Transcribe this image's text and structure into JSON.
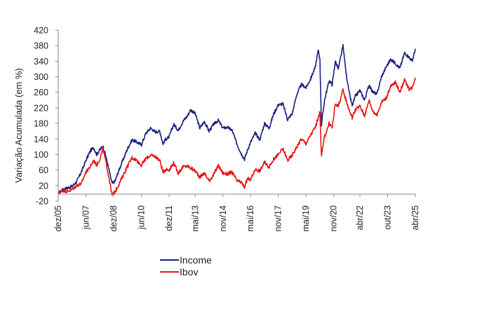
{
  "chart_data": {
    "type": "line",
    "title": "",
    "xlabel": "",
    "ylabel": "Variação Acumulada (em %)",
    "ylim": [
      -20,
      420
    ],
    "yticks": [
      -20,
      20,
      60,
      100,
      140,
      180,
      220,
      260,
      300,
      340,
      380,
      420
    ],
    "grid": false,
    "legend_position": "bottom-left",
    "x_range": [
      "2005-12",
      "2025-04"
    ],
    "x_tick_labels": [
      "dez/05",
      "jun/07",
      "dez/08",
      "jun/10",
      "dez/11",
      "mai/13",
      "nov/14",
      "mai/16",
      "nov/17",
      "mai/19",
      "nov/20",
      "abr/22",
      "out/23",
      "abr/25"
    ],
    "x_tick_dates": [
      "2005-12",
      "2007-06",
      "2008-12",
      "2010-06",
      "2011-12",
      "2013-05",
      "2014-11",
      "2016-05",
      "2017-11",
      "2019-05",
      "2020-11",
      "2022-04",
      "2023-10",
      "2025-04"
    ],
    "series": [
      {
        "name": "Income",
        "color": "#1a1f80",
        "points": [
          [
            "2005-12",
            0
          ],
          [
            "2006-03",
            10
          ],
          [
            "2006-06",
            14
          ],
          [
            "2006-09",
            18
          ],
          [
            "2006-12",
            30
          ],
          [
            "2007-03",
            55
          ],
          [
            "2007-06",
            85
          ],
          [
            "2007-09",
            110
          ],
          [
            "2007-11",
            118
          ],
          [
            "2008-01",
            100
          ],
          [
            "2008-03",
            112
          ],
          [
            "2008-05",
            122
          ],
          [
            "2008-07",
            95
          ],
          [
            "2008-09",
            60
          ],
          [
            "2008-11",
            25
          ],
          [
            "2009-01",
            32
          ],
          [
            "2009-03",
            55
          ],
          [
            "2009-06",
            85
          ],
          [
            "2009-09",
            115
          ],
          [
            "2009-12",
            138
          ],
          [
            "2010-03",
            132
          ],
          [
            "2010-06",
            125
          ],
          [
            "2010-09",
            155
          ],
          [
            "2010-12",
            168
          ],
          [
            "2011-03",
            158
          ],
          [
            "2011-06",
            160
          ],
          [
            "2011-08",
            128
          ],
          [
            "2011-10",
            140
          ],
          [
            "2011-12",
            145
          ],
          [
            "2012-03",
            178
          ],
          [
            "2012-06",
            162
          ],
          [
            "2012-09",
            185
          ],
          [
            "2012-12",
            200
          ],
          [
            "2013-02",
            215
          ],
          [
            "2013-05",
            205
          ],
          [
            "2013-08",
            168
          ],
          [
            "2013-11",
            185
          ],
          [
            "2014-02",
            160
          ],
          [
            "2014-05",
            178
          ],
          [
            "2014-08",
            188
          ],
          [
            "2014-11",
            168
          ],
          [
            "2015-02",
            170
          ],
          [
            "2015-05",
            162
          ],
          [
            "2015-08",
            128
          ],
          [
            "2015-11",
            102
          ],
          [
            "2016-01",
            88
          ],
          [
            "2016-03",
            112
          ],
          [
            "2016-05",
            132
          ],
          [
            "2016-08",
            155
          ],
          [
            "2016-11",
            138
          ],
          [
            "2017-02",
            180
          ],
          [
            "2017-05",
            168
          ],
          [
            "2017-08",
            205
          ],
          [
            "2017-11",
            228
          ],
          [
            "2018-02",
            230
          ],
          [
            "2018-05",
            190
          ],
          [
            "2018-08",
            205
          ],
          [
            "2018-11",
            255
          ],
          [
            "2019-02",
            280
          ],
          [
            "2019-05",
            272
          ],
          [
            "2019-08",
            295
          ],
          [
            "2019-11",
            325
          ],
          [
            "2020-01",
            370
          ],
          [
            "2020-02",
            345
          ],
          [
            "2020-03",
            175
          ],
          [
            "2020-05",
            240
          ],
          [
            "2020-08",
            290
          ],
          [
            "2020-10",
            280
          ],
          [
            "2020-12",
            340
          ],
          [
            "2021-02",
            320
          ],
          [
            "2021-05",
            380
          ],
          [
            "2021-07",
            310
          ],
          [
            "2021-09",
            260
          ],
          [
            "2021-11",
            225
          ],
          [
            "2022-01",
            250
          ],
          [
            "2022-04",
            265
          ],
          [
            "2022-07",
            240
          ],
          [
            "2022-10",
            280
          ],
          [
            "2022-12",
            262
          ],
          [
            "2023-03",
            255
          ],
          [
            "2023-06",
            300
          ],
          [
            "2023-09",
            325
          ],
          [
            "2023-12",
            345
          ],
          [
            "2024-03",
            335
          ],
          [
            "2024-06",
            322
          ],
          [
            "2024-09",
            362
          ],
          [
            "2024-12",
            350
          ],
          [
            "2025-02",
            340
          ],
          [
            "2025-04",
            372
          ]
        ]
      },
      {
        "name": "Ibov",
        "color": "#e81515",
        "points": [
          [
            "2005-12",
            0
          ],
          [
            "2006-03",
            8
          ],
          [
            "2006-06",
            5
          ],
          [
            "2006-09",
            10
          ],
          [
            "2006-12",
            20
          ],
          [
            "2007-03",
            25
          ],
          [
            "2007-06",
            55
          ],
          [
            "2007-09",
            70
          ],
          [
            "2007-11",
            85
          ],
          [
            "2008-01",
            72
          ],
          [
            "2008-03",
            88
          ],
          [
            "2008-05",
            115
          ],
          [
            "2008-07",
            80
          ],
          [
            "2008-09",
            40
          ],
          [
            "2008-11",
            -5
          ],
          [
            "2009-01",
            5
          ],
          [
            "2009-03",
            20
          ],
          [
            "2009-06",
            45
          ],
          [
            "2009-09",
            70
          ],
          [
            "2009-12",
            92
          ],
          [
            "2010-03",
            85
          ],
          [
            "2010-06",
            72
          ],
          [
            "2010-09",
            90
          ],
          [
            "2010-12",
            98
          ],
          [
            "2011-03",
            95
          ],
          [
            "2011-06",
            85
          ],
          [
            "2011-08",
            55
          ],
          [
            "2011-10",
            62
          ],
          [
            "2011-12",
            60
          ],
          [
            "2012-03",
            78
          ],
          [
            "2012-06",
            52
          ],
          [
            "2012-09",
            68
          ],
          [
            "2012-12",
            70
          ],
          [
            "2013-02",
            65
          ],
          [
            "2013-05",
            58
          ],
          [
            "2013-08",
            42
          ],
          [
            "2013-11",
            52
          ],
          [
            "2014-02",
            32
          ],
          [
            "2014-05",
            48
          ],
          [
            "2014-08",
            72
          ],
          [
            "2014-11",
            52
          ],
          [
            "2015-02",
            50
          ],
          [
            "2015-05",
            55
          ],
          [
            "2015-08",
            32
          ],
          [
            "2015-11",
            28
          ],
          [
            "2016-01",
            15
          ],
          [
            "2016-03",
            38
          ],
          [
            "2016-05",
            35
          ],
          [
            "2016-08",
            62
          ],
          [
            "2016-11",
            58
          ],
          [
            "2017-02",
            80
          ],
          [
            "2017-05",
            68
          ],
          [
            "2017-08",
            88
          ],
          [
            "2017-11",
            100
          ],
          [
            "2018-02",
            115
          ],
          [
            "2018-05",
            85
          ],
          [
            "2018-08",
            98
          ],
          [
            "2018-11",
            120
          ],
          [
            "2019-02",
            140
          ],
          [
            "2019-05",
            128
          ],
          [
            "2019-08",
            150
          ],
          [
            "2019-11",
            170
          ],
          [
            "2020-01",
            195
          ],
          [
            "2020-02",
            210
          ],
          [
            "2020-03",
            95
          ],
          [
            "2020-05",
            145
          ],
          [
            "2020-08",
            180
          ],
          [
            "2020-10",
            170
          ],
          [
            "2020-12",
            230
          ],
          [
            "2021-02",
            225
          ],
          [
            "2021-05",
            265
          ],
          [
            "2021-07",
            240
          ],
          [
            "2021-09",
            215
          ],
          [
            "2021-11",
            195
          ],
          [
            "2022-01",
            215
          ],
          [
            "2022-04",
            225
          ],
          [
            "2022-07",
            200
          ],
          [
            "2022-10",
            240
          ],
          [
            "2022-12",
            215
          ],
          [
            "2023-03",
            200
          ],
          [
            "2023-06",
            235
          ],
          [
            "2023-09",
            245
          ],
          [
            "2023-12",
            275
          ],
          [
            "2024-03",
            285
          ],
          [
            "2024-06",
            262
          ],
          [
            "2024-09",
            292
          ],
          [
            "2024-12",
            268
          ],
          [
            "2025-02",
            272
          ],
          [
            "2025-04",
            298
          ]
        ]
      }
    ]
  }
}
